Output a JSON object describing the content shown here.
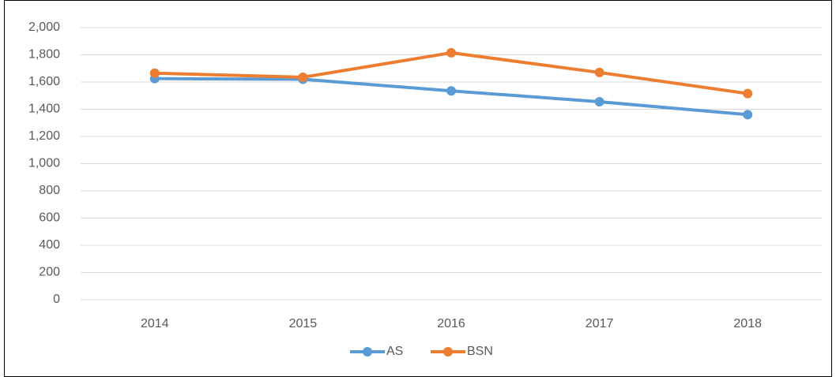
{
  "chart_data": {
    "type": "line",
    "categories": [
      "2014",
      "2015",
      "2016",
      "2017",
      "2018"
    ],
    "series": [
      {
        "name": "AS",
        "color": "#5b9bd5",
        "values": [
          1625,
          1620,
          1535,
          1455,
          1360
        ]
      },
      {
        "name": "BSN",
        "color": "#ed7d31",
        "values": [
          1665,
          1635,
          1815,
          1670,
          1515
        ]
      }
    ],
    "ylim": [
      0,
      2000
    ],
    "yticks": [
      0,
      200,
      400,
      600,
      800,
      {
        "value": 1000,
        "label": "1,000"
      },
      {
        "value": 1200,
        "label": "1,200"
      },
      {
        "value": 1400,
        "label": "1,400"
      },
      {
        "value": 1600,
        "label": "1,600"
      },
      {
        "value": 1800,
        "label": "1,800"
      },
      {
        "value": 2000,
        "label": "2,000"
      }
    ],
    "grid": true,
    "legend": "bottom"
  }
}
